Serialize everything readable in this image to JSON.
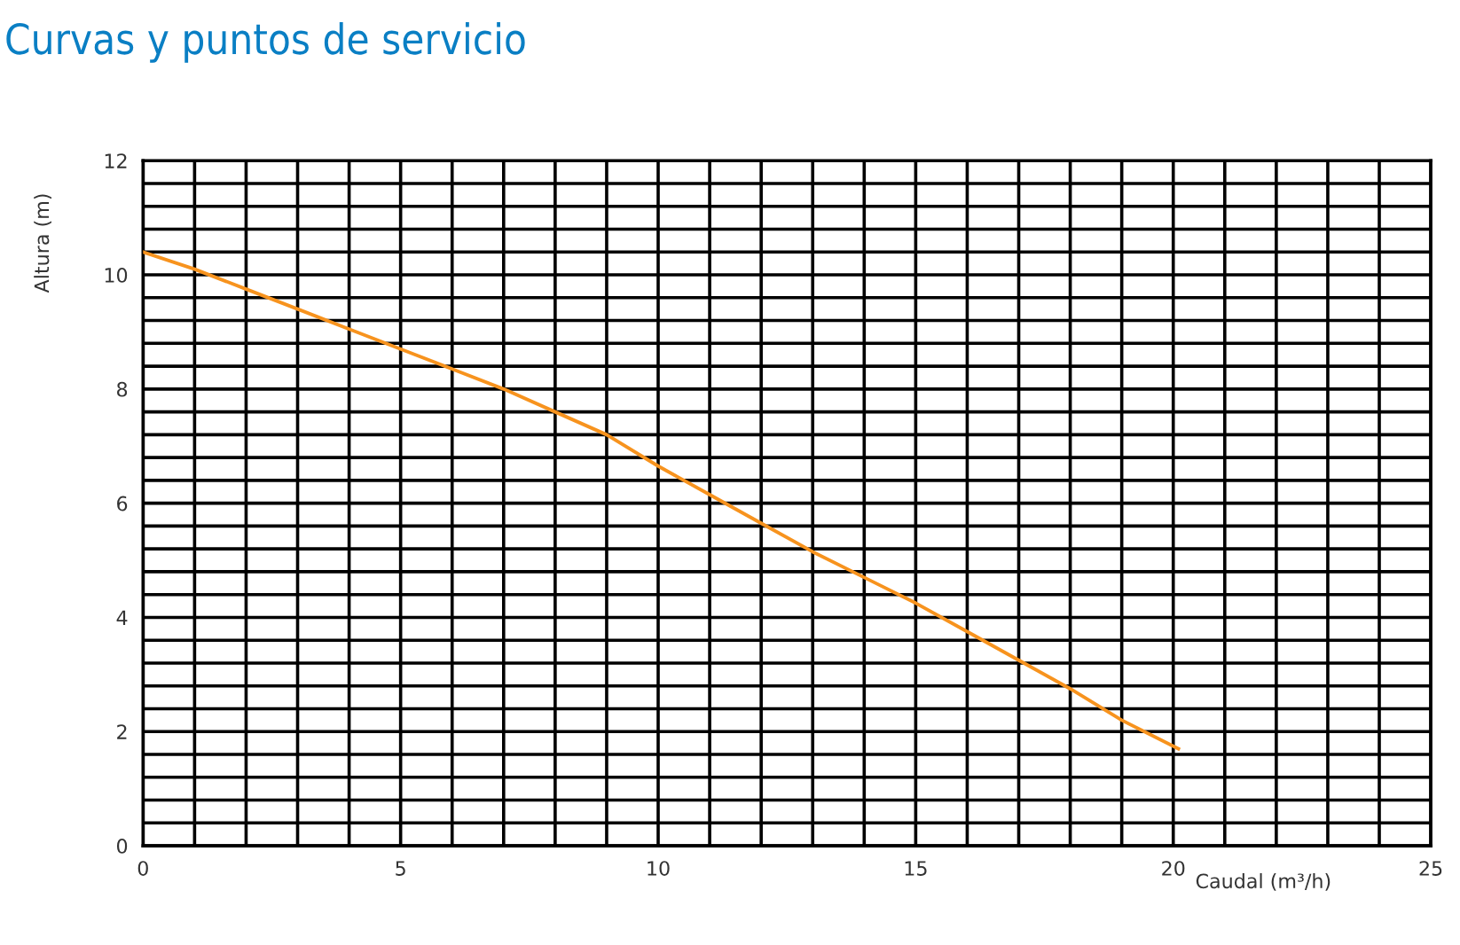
{
  "chart_data": {
    "type": "line",
    "title": "Curvas y puntos de servicio",
    "xlabel": "Caudal (m³/h)",
    "ylabel": "Altura (m)",
    "x": [
      0,
      1,
      2,
      3,
      4,
      5,
      6,
      7,
      8,
      9,
      10,
      11,
      12,
      13,
      14,
      15,
      16,
      17,
      18,
      19,
      20.1
    ],
    "series": [
      {
        "color": "#f7931e",
        "values": [
          10.4,
          10.1,
          9.75,
          9.4,
          9.05,
          8.7,
          8.35,
          8.0,
          7.6,
          7.2,
          6.65,
          6.15,
          5.65,
          5.15,
          4.7,
          4.25,
          3.75,
          3.25,
          2.75,
          2.2,
          1.7
        ]
      }
    ],
    "xlim": [
      0,
      25
    ],
    "ylim": [
      0,
      12
    ],
    "xticks": [
      0,
      {
        "value": 1,
        "label": null
      },
      {
        "value": 2,
        "label": null
      },
      {
        "value": 3,
        "label": null
      },
      {
        "value": 4,
        "label": null
      },
      5,
      {
        "value": 6,
        "label": null
      },
      {
        "value": 7,
        "label": null
      },
      {
        "value": 8,
        "label": null
      },
      {
        "value": 9,
        "label": null
      },
      10,
      {
        "value": 11,
        "label": null
      },
      {
        "value": 12,
        "label": null
      },
      {
        "value": 13,
        "label": null
      },
      {
        "value": 14,
        "label": null
      },
      15,
      {
        "value": 16,
        "label": null
      },
      {
        "value": 17,
        "label": null
      },
      {
        "value": 18,
        "label": null
      },
      {
        "value": 19,
        "label": null
      },
      20,
      {
        "value": 21,
        "label": null
      },
      {
        "value": 22,
        "label": null
      },
      {
        "value": 23,
        "label": null
      },
      {
        "value": 24,
        "label": null
      },
      25
    ],
    "yticks": [
      0,
      {
        "value": 0.4,
        "label": null
      },
      {
        "value": 0.8,
        "label": null
      },
      {
        "value": 1.2,
        "label": null
      },
      {
        "value": 1.6,
        "label": null
      },
      2,
      {
        "value": 2.4,
        "label": null
      },
      {
        "value": 2.8,
        "label": null
      },
      {
        "value": 3.2,
        "label": null
      },
      {
        "value": 3.6,
        "label": null
      },
      4,
      {
        "value": 4.4,
        "label": null
      },
      {
        "value": 4.8,
        "label": null
      },
      {
        "value": 5.2,
        "label": null
      },
      {
        "value": 5.6,
        "label": null
      },
      6,
      {
        "value": 6.4,
        "label": null
      },
      {
        "value": 6.8,
        "label": null
      },
      {
        "value": 7.2,
        "label": null
      },
      {
        "value": 7.6,
        "label": null
      },
      8,
      {
        "value": 8.4,
        "label": null
      },
      {
        "value": 8.8,
        "label": null
      },
      {
        "value": 9.2,
        "label": null
      },
      {
        "value": 9.6,
        "label": null
      },
      10,
      {
        "value": 10.4,
        "label": null
      },
      {
        "value": 10.8,
        "label": null
      },
      {
        "value": 11.2,
        "label": null
      },
      {
        "value": 11.6,
        "label": null
      },
      12
    ],
    "grid": true,
    "line_style": "solid",
    "marker": "none"
  }
}
